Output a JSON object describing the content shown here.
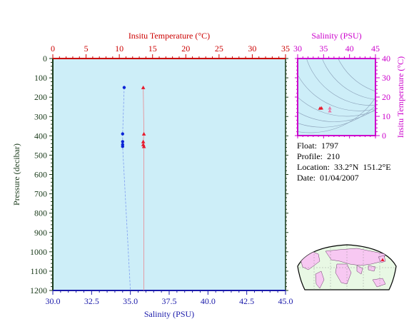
{
  "chart_data": [
    {
      "type": "scatter",
      "panel": "profile",
      "title": "",
      "top_axis_label": "Insitu Temperature (°C)",
      "top_axis_range": [
        0,
        35
      ],
      "top_ticks": [
        "0",
        "5",
        "10",
        "15",
        "20",
        "25",
        "30",
        "35"
      ],
      "bottom_axis_label": "Salinity (PSU)",
      "bottom_axis_range": [
        30.0,
        45.0
      ],
      "bottom_ticks": [
        "30.0",
        "32.5",
        "35.0",
        "37.5",
        "40.0",
        "42.5",
        "45.0"
      ],
      "ylabel": "Pressure (decibar)",
      "ylim": [
        0,
        1200
      ],
      "y_inverted": true,
      "y_ticks": [
        "0",
        "100",
        "200",
        "300",
        "400",
        "500",
        "600",
        "700",
        "800",
        "900",
        "1000",
        "1100",
        "1200"
      ],
      "series": [
        {
          "kind": "temperature",
          "color": "#e8192c",
          "marker": "triangle",
          "points": [
            {
              "pressure": 150,
              "temperature": 13.6
            },
            {
              "pressure": 390,
              "temperature": 13.7
            },
            {
              "pressure": 430,
              "temperature": 13.6
            },
            {
              "pressure": 445,
              "temperature": 13.6
            },
            {
              "pressure": 455,
              "temperature": 13.7
            }
          ],
          "line_to": {
            "pressure": 1200,
            "temperature": 13.7
          }
        },
        {
          "kind": "salinity",
          "color": "#0a23d6",
          "marker": "circle",
          "points": [
            {
              "pressure": 150,
              "salinity": 34.6
            },
            {
              "pressure": 390,
              "salinity": 34.5
            },
            {
              "pressure": 430,
              "salinity": 34.5
            },
            {
              "pressure": 445,
              "salinity": 34.5
            },
            {
              "pressure": 455,
              "salinity": 34.5
            }
          ],
          "line_to": {
            "pressure": 1200,
            "salinity": 35.0
          }
        }
      ],
      "colors": {
        "background": "#cdeef8",
        "temp_axis": "#cc0000",
        "sal_axis": "#1a1aaa",
        "pressure_axis": "#1a3a1a"
      }
    },
    {
      "type": "scatter",
      "panel": "ts-diagram",
      "title": "",
      "xlabel": "Salinity (PSU)",
      "ylabel": "Insitu Temperature (°C)",
      "xlim": [
        30,
        45
      ],
      "ylim": [
        0,
        40
      ],
      "x_ticks": [
        "30",
        "35",
        "40",
        "45"
      ],
      "y_ticks": [
        "0",
        "10",
        "20",
        "30",
        "40"
      ],
      "points": [
        {
          "salinity": 34.3,
          "temperature": 14.2,
          "color": "#e8192c"
        },
        {
          "salinity": 34.6,
          "temperature": 14.3,
          "color": "#e8192c"
        },
        {
          "salinity": 36.2,
          "temperature": 14.3,
          "color": "#e87aa8"
        },
        {
          "salinity": 36.2,
          "temperature": 12.8,
          "color": "#e87aa8"
        }
      ],
      "colors": {
        "axis": "#cc00cc",
        "background": "#cdeef8",
        "contours": "#8aa0b8"
      }
    }
  ],
  "info": {
    "float_label": "Float:",
    "float_value": "1797",
    "profile_label": "Profile:",
    "profile_value": "210",
    "location_label": "Location:",
    "location_value": "33.2°N  151.2°E",
    "date_label": "Date:",
    "date_value": "01/04/2007"
  },
  "map": {
    "land_color": "#f7c8f2",
    "ocean_color": "#e8f8e4",
    "float_marker_color": "#e8192c"
  }
}
